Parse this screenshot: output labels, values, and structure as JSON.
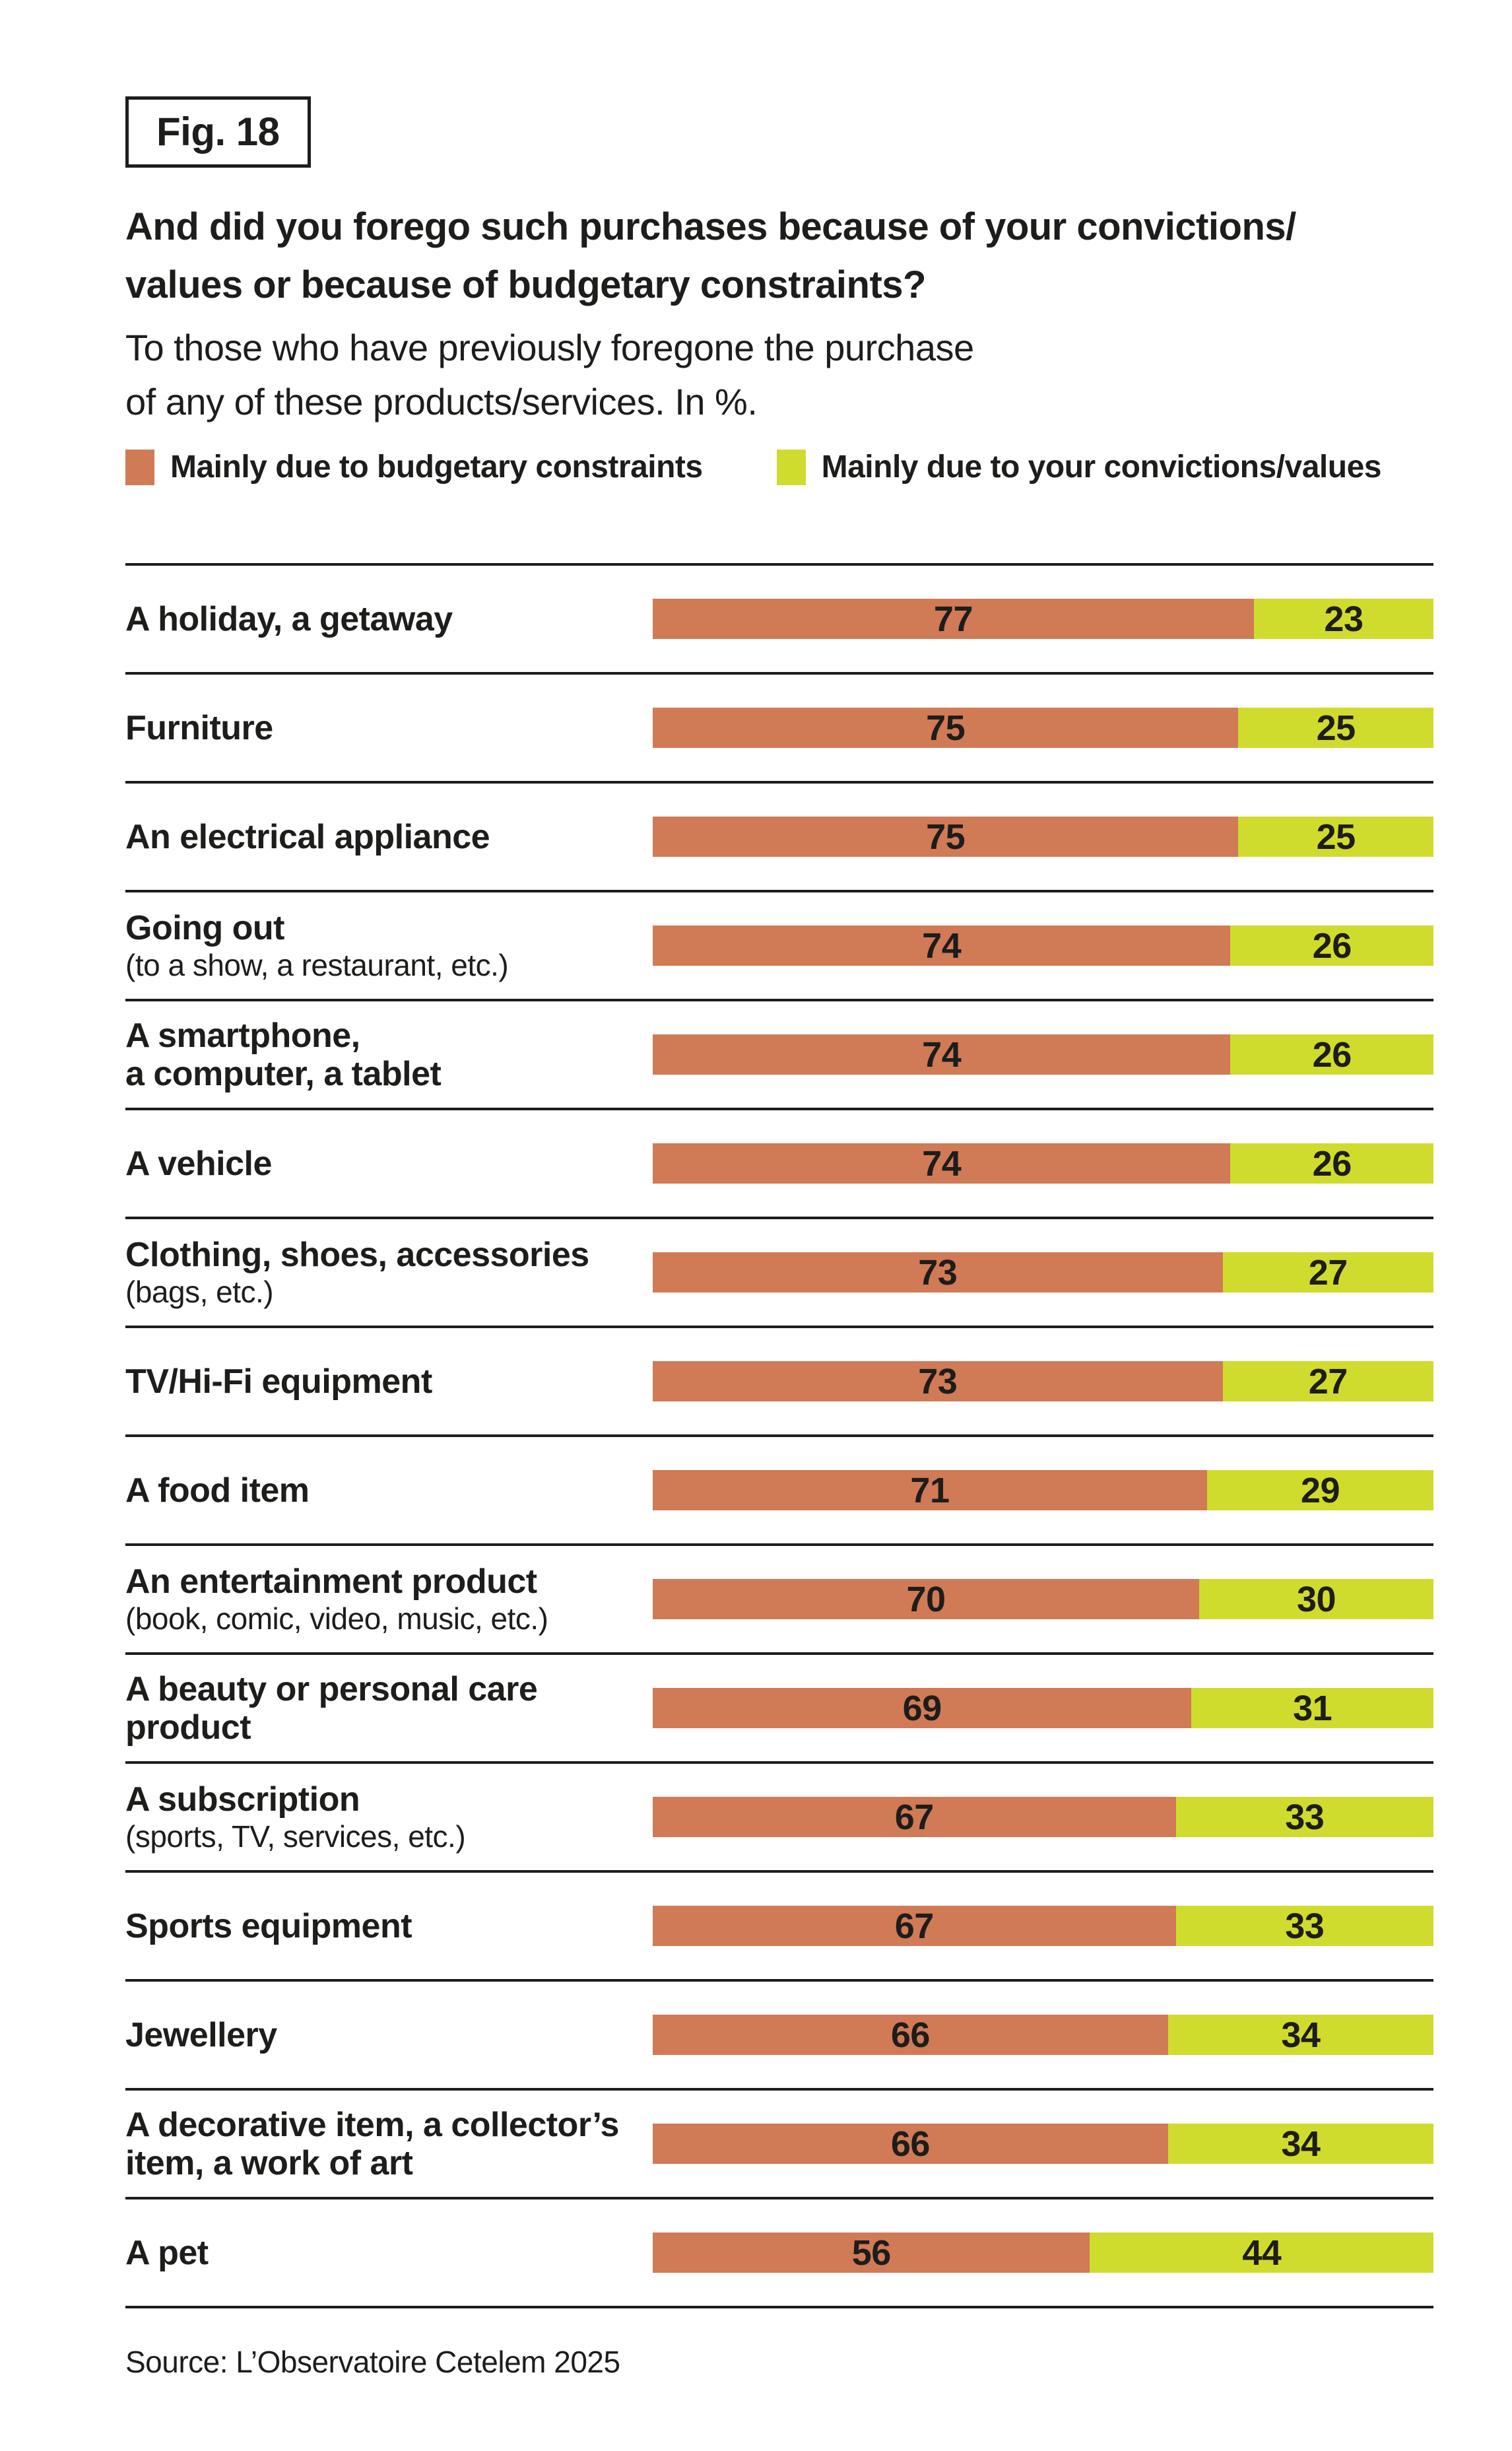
{
  "figure_label": "Fig. 18",
  "header": {
    "title_lines": [
      "And did you forego such purchases because of your convictions/",
      "values or because of budgetary constraints?"
    ],
    "subtitle_lines": [
      "To those who have previously foregone the purchase",
      "of any of these products/services. In %."
    ]
  },
  "legend": [
    {
      "label": "Mainly due to budgetary constraints",
      "color_key": "budget"
    },
    {
      "label": "Mainly due to your convictions/values",
      "color_key": "convictions"
    }
  ],
  "colors": {
    "budget": "#d07a56",
    "convictions": "#cfdc2d",
    "text": "#1d1d1b",
    "rule": "#1d1d1b"
  },
  "chart_data": {
    "type": "bar",
    "orientation": "horizontal",
    "stacked": true,
    "unit": "%",
    "xlim": [
      0,
      100
    ],
    "grid": false,
    "legend_position": "top",
    "series_names": [
      "Mainly due to budgetary constraints",
      "Mainly due to your convictions/values"
    ],
    "rows": [
      {
        "category": "A holiday, a getaway",
        "label_lines": [
          "A holiday, a getaway"
        ],
        "sublabel": "",
        "budget": 77,
        "convictions": 23
      },
      {
        "category": "Furniture",
        "label_lines": [
          "Furniture"
        ],
        "sublabel": "",
        "budget": 75,
        "convictions": 25
      },
      {
        "category": "An electrical appliance",
        "label_lines": [
          "An electrical appliance"
        ],
        "sublabel": "",
        "budget": 75,
        "convictions": 25
      },
      {
        "category": "Going out (to a show, a restaurant, etc.)",
        "label_lines": [
          "Going out"
        ],
        "sublabel": "(to a show, a restaurant, etc.)",
        "budget": 74,
        "convictions": 26
      },
      {
        "category": "A smartphone, a computer, a tablet",
        "label_lines": [
          "A smartphone,",
          "a computer, a tablet"
        ],
        "sublabel": "",
        "budget": 74,
        "convictions": 26
      },
      {
        "category": "A vehicle",
        "label_lines": [
          "A vehicle"
        ],
        "sublabel": "",
        "budget": 74,
        "convictions": 26
      },
      {
        "category": "Clothing, shoes, accessories (bags, etc.)",
        "label_lines": [
          "Clothing, shoes, accessories"
        ],
        "sublabel": "(bags, etc.)",
        "budget": 73,
        "convictions": 27
      },
      {
        "category": "TV/Hi-Fi equipment",
        "label_lines": [
          "TV/Hi-Fi equipment"
        ],
        "sublabel": "",
        "budget": 73,
        "convictions": 27
      },
      {
        "category": "A food item",
        "label_lines": [
          "A food item"
        ],
        "sublabel": "",
        "budget": 71,
        "convictions": 29
      },
      {
        "category": "An entertainment product (book, comic, video, music, etc.)",
        "label_lines": [
          "An entertainment product"
        ],
        "sublabel": "(book, comic, video, music, etc.)",
        "budget": 70,
        "convictions": 30
      },
      {
        "category": "A beauty or personal care product",
        "label_lines": [
          "A beauty or personal care",
          "product"
        ],
        "sublabel": "",
        "budget": 69,
        "convictions": 31
      },
      {
        "category": "A subscription (sports, TV, services, etc.)",
        "label_lines": [
          "A subscription"
        ],
        "sublabel": "(sports, TV, services, etc.)",
        "budget": 67,
        "convictions": 33
      },
      {
        "category": "Sports equipment",
        "label_lines": [
          "Sports equipment"
        ],
        "sublabel": "",
        "budget": 67,
        "convictions": 33
      },
      {
        "category": "Jewellery",
        "label_lines": [
          "Jewellery"
        ],
        "sublabel": "",
        "budget": 66,
        "convictions": 34
      },
      {
        "category": "A decorative item, a collector's item, a work of art",
        "label_lines": [
          "A decorative item, a collector’s",
          "item, a work of art"
        ],
        "sublabel": "",
        "budget": 66,
        "convictions": 34
      },
      {
        "category": "A pet",
        "label_lines": [
          "A pet"
        ],
        "sublabel": "",
        "budget": 56,
        "convictions": 44
      }
    ]
  },
  "source": "Source: L’Observatoire Cetelem 2025"
}
